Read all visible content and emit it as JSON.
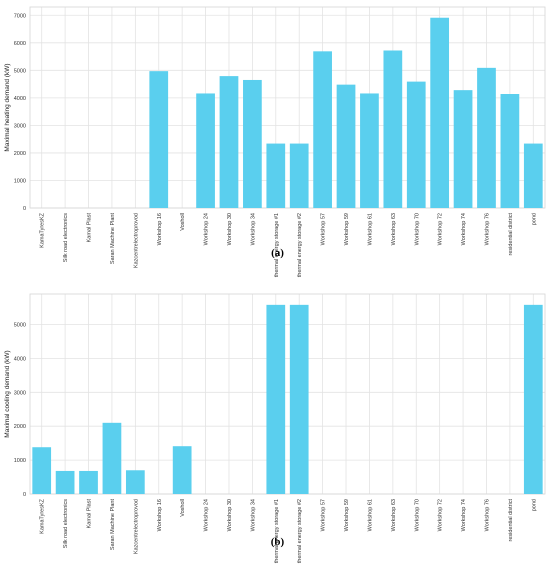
{
  "chart_data": [
    {
      "type": "bar",
      "panel_label": "(a)",
      "title": "",
      "xlabel": "",
      "ylabel": "Maximal heating demand (kW)",
      "ylim": [
        0,
        7300
      ],
      "yticks": [
        0,
        1000,
        2000,
        3000,
        4000,
        5000,
        6000,
        7000
      ],
      "grid": true,
      "categories": [
        "KamaTyresKZ",
        "Silk road electronics",
        "Kamal Plast",
        "Saran Machine Plant",
        "Kazcentrelectroprovod",
        "Workshop 16",
        "Vosholl",
        "Workshop 24",
        "Workshop 30",
        "Workshop 34",
        "thermal energy storage #1",
        "thermal energy storage #2",
        "Workshop 57",
        "Workshop 59",
        "Workshop 61",
        "Workshop 63",
        "Workshop 70",
        "Workshop 72",
        "Workshop 74",
        "Workshop 76",
        "residential district",
        "pond"
      ],
      "values": [
        0,
        0,
        0,
        0,
        0,
        4970,
        0,
        4160,
        4790,
        4650,
        2340,
        2340,
        5690,
        4480,
        4160,
        5720,
        4590,
        6910,
        4280,
        5090,
        4140,
        2340
      ]
    },
    {
      "type": "bar",
      "panel_label": "(b)",
      "title": "",
      "xlabel": "",
      "ylabel": "Maximal cooling demand (kW)",
      "ylim": [
        0,
        5900
      ],
      "yticks": [
        0,
        1000,
        2000,
        3000,
        4000,
        5000
      ],
      "grid": true,
      "categories": [
        "KamaTyresKZ",
        "Silk road electronics",
        "Kamal Plast",
        "Saran Machine Plant",
        "Kazcentrelectroprovod",
        "Workshop 16",
        "Vosholl",
        "Workshop 24",
        "Workshop 30",
        "Workshop 34",
        "thermal energy storage #1",
        "thermal energy storage #2",
        "Workshop 57",
        "Workshop 59",
        "Workshop 61",
        "Workshop 63",
        "Workshop 70",
        "Workshop 72",
        "Workshop 74",
        "Workshop 76",
        "residential district",
        "pond"
      ],
      "values": [
        1380,
        680,
        680,
        2100,
        700,
        0,
        1410,
        0,
        0,
        0,
        5580,
        5580,
        0,
        0,
        0,
        0,
        0,
        0,
        0,
        0,
        0,
        5580
      ]
    }
  ],
  "colors": {
    "bar": "#5acfee",
    "grid": "#e3e3e3"
  }
}
